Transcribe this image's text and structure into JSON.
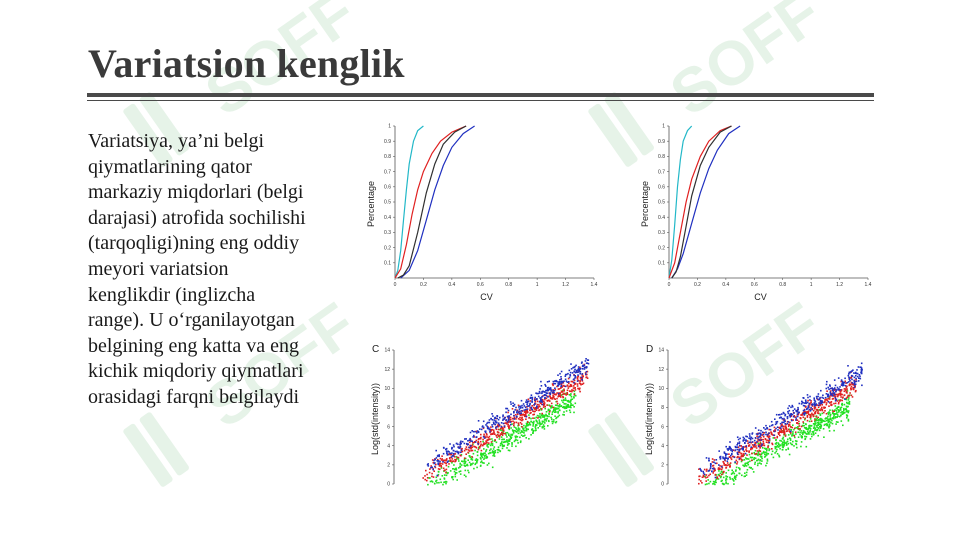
{
  "slide": {
    "title": "Variatsion kenglik",
    "body_lines": [
      "Variatsiya, ya’ni belgi",
      "qiymatlarining qator",
      "markaziy miqdorlari (belgi",
      "darajasi) atrofida sochilishi",
      "(tarqoqligi)ning eng oddiy",
      "meyori variatsion",
      "kenglikdir (inglizcha",
      "range). U o‘rganilayotgan",
      "belgining eng katta va eng",
      "kichik miqdoriy qiymatlari",
      "orasidagi farqni belgilaydi"
    ],
    "watermark_text": "SOFF",
    "colors": {
      "cyan": "#22b8c8",
      "red": "#e02020",
      "blue": "#2030c0",
      "dark": "#303030",
      "green": "#22e022"
    }
  },
  "chart_data": [
    {
      "type": "line",
      "panel_label": "",
      "xlabel": "CV",
      "ylabel": "Percentage",
      "xlim": [
        0,
        1.4
      ],
      "ylim": [
        0,
        1
      ],
      "x_ticks": [
        "0",
        "0.2",
        "0.4",
        "0.6",
        "0.8",
        "1",
        "1.2",
        "1.4"
      ],
      "y_ticks": [
        "0.1",
        "0.2",
        "0.3",
        "0.4",
        "0.5",
        "0.6",
        "0.7",
        "0.8",
        "0.9",
        "1"
      ],
      "series": [
        {
          "color": "#22b8c8",
          "x": [
            0,
            0.02,
            0.04,
            0.06,
            0.08,
            0.1,
            0.13,
            0.16,
            0.2
          ],
          "y": [
            0,
            0.05,
            0.18,
            0.38,
            0.58,
            0.75,
            0.9,
            0.97,
            1.0
          ]
        },
        {
          "color": "#e02020",
          "x": [
            0,
            0.04,
            0.08,
            0.12,
            0.16,
            0.2,
            0.26,
            0.32,
            0.4,
            0.5
          ],
          "y": [
            0,
            0.06,
            0.22,
            0.42,
            0.58,
            0.7,
            0.82,
            0.9,
            0.96,
            1.0
          ]
        },
        {
          "color": "#2030c0",
          "x": [
            0.04,
            0.1,
            0.16,
            0.22,
            0.28,
            0.34,
            0.4,
            0.48,
            0.56
          ],
          "y": [
            0,
            0.05,
            0.18,
            0.38,
            0.58,
            0.74,
            0.86,
            0.95,
            1.0
          ]
        },
        {
          "color": "#303030",
          "x": [
            0.02,
            0.06,
            0.1,
            0.16,
            0.22,
            0.28,
            0.34,
            0.42,
            0.5
          ],
          "y": [
            0,
            0.02,
            0.08,
            0.3,
            0.56,
            0.75,
            0.88,
            0.96,
            1.0
          ]
        }
      ]
    },
    {
      "type": "line",
      "panel_label": "",
      "xlabel": "CV",
      "ylabel": "Percentage",
      "xlim": [
        0,
        1.4
      ],
      "ylim": [
        0,
        1
      ],
      "x_ticks": [
        "0",
        "0.2",
        "0.4",
        "0.6",
        "0.8",
        "1",
        "1.2",
        "1.4"
      ],
      "y_ticks": [
        "0.1",
        "0.2",
        "0.3",
        "0.4",
        "0.5",
        "0.6",
        "0.7",
        "0.8",
        "0.9",
        "1"
      ],
      "series": [
        {
          "color": "#22b8c8",
          "x": [
            0,
            0.02,
            0.04,
            0.06,
            0.08,
            0.1,
            0.13,
            0.16
          ],
          "y": [
            0,
            0.12,
            0.35,
            0.6,
            0.78,
            0.9,
            0.97,
            1.0
          ]
        },
        {
          "color": "#e02020",
          "x": [
            0,
            0.04,
            0.08,
            0.12,
            0.16,
            0.22,
            0.28,
            0.36,
            0.44
          ],
          "y": [
            0,
            0.1,
            0.3,
            0.5,
            0.65,
            0.8,
            0.9,
            0.97,
            1.0
          ]
        },
        {
          "color": "#2030c0",
          "x": [
            0.02,
            0.06,
            0.1,
            0.16,
            0.22,
            0.28,
            0.34,
            0.42,
            0.5
          ],
          "y": [
            0,
            0.06,
            0.16,
            0.36,
            0.56,
            0.72,
            0.84,
            0.95,
            1.0
          ]
        },
        {
          "color": "#303030",
          "x": [
            0.02,
            0.05,
            0.08,
            0.12,
            0.16,
            0.22,
            0.28,
            0.36,
            0.44
          ],
          "y": [
            0,
            0.04,
            0.14,
            0.34,
            0.54,
            0.74,
            0.86,
            0.96,
            1.0
          ]
        }
      ]
    },
    {
      "type": "scatter",
      "panel_label": "C",
      "xlabel": "",
      "ylabel": "Log(std(intensity))",
      "xlim": [
        0,
        16
      ],
      "ylim": [
        0,
        14
      ],
      "y_ticks": [
        "0",
        "2",
        "4",
        "6",
        "8",
        "10",
        "12",
        "14"
      ],
      "series": [
        {
          "color": "#2030c0",
          "x_range": [
            2.5,
            15.5
          ],
          "slope": 0.82,
          "intercept": -0.2,
          "spread": 0.9,
          "n": 420
        },
        {
          "color": "#e02020",
          "x_range": [
            2.2,
            15.5
          ],
          "slope": 0.8,
          "intercept": -0.9,
          "spread": 0.9,
          "n": 520
        },
        {
          "color": "#22e022",
          "x_range": [
            2.5,
            14.5
          ],
          "slope": 0.78,
          "intercept": -2.3,
          "spread": 1.1,
          "n": 560
        }
      ]
    },
    {
      "type": "scatter",
      "panel_label": "D",
      "xlabel": "",
      "ylabel": "Log(std(intensity))",
      "xlim": [
        0,
        16
      ],
      "ylim": [
        0,
        14
      ],
      "y_ticks": [
        "0",
        "2",
        "4",
        "6",
        "8",
        "10",
        "12",
        "14"
      ],
      "series": [
        {
          "color": "#2030c0",
          "x_range": [
            2.5,
            15.5
          ],
          "slope": 0.8,
          "intercept": -0.6,
          "spread": 1.0,
          "n": 420
        },
        {
          "color": "#e02020",
          "x_range": [
            2.2,
            15.0
          ],
          "slope": 0.78,
          "intercept": -1.3,
          "spread": 1.0,
          "n": 520
        },
        {
          "color": "#22e022",
          "x_range": [
            2.8,
            14.5
          ],
          "slope": 0.75,
          "intercept": -2.6,
          "spread": 1.1,
          "n": 560
        }
      ]
    }
  ]
}
